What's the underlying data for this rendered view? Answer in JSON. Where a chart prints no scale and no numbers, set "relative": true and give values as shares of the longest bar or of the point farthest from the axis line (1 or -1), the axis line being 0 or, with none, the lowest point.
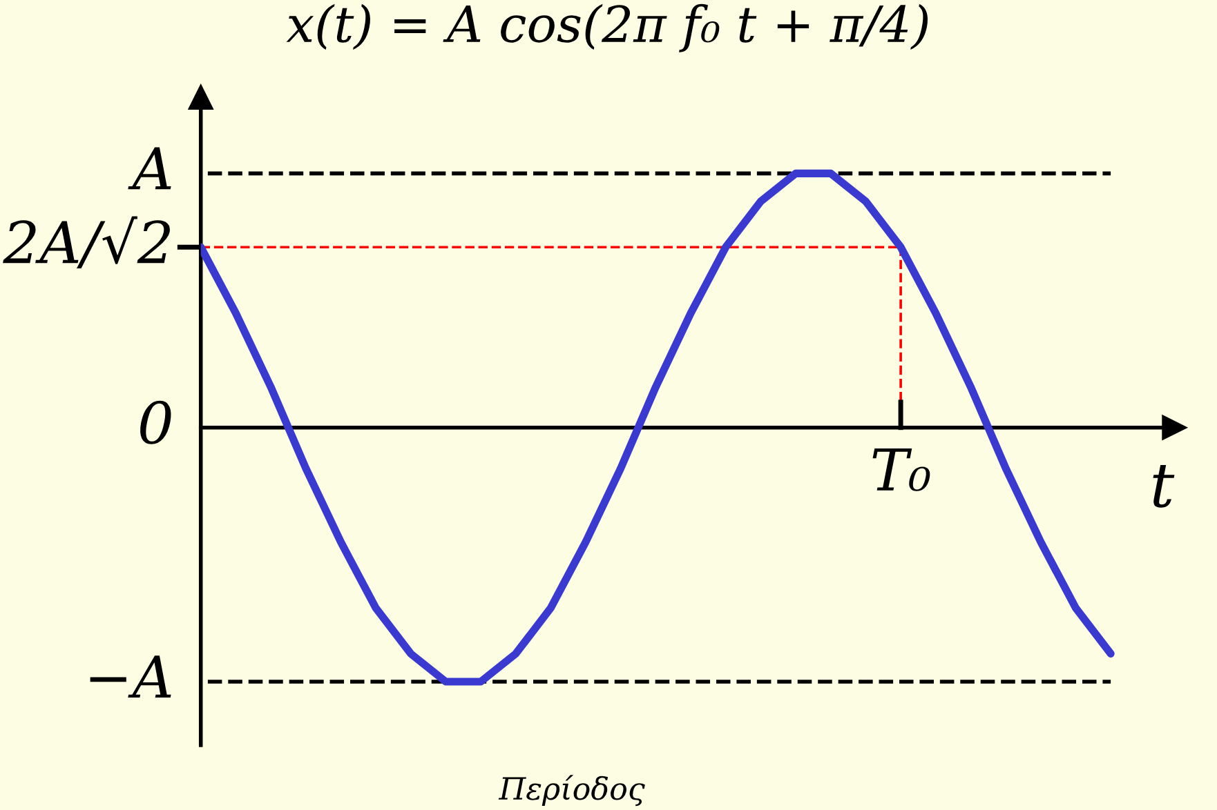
{
  "chart_data": {
    "type": "line",
    "title": "x(t) = A cos(2π f₀ t + π/4)",
    "xlabel": "t",
    "relative": true,
    "annotations": [
      "A",
      "2A/√2",
      "0",
      "−A",
      "T₀",
      "Περίοδος"
    ],
    "categories": [
      null,
      null,
      null,
      null,
      null,
      null,
      null,
      null,
      null,
      null,
      null,
      null,
      null,
      null,
      null,
      null,
      null,
      null,
      null,
      null,
      null,
      null,
      null,
      null,
      null,
      null,
      null
    ],
    "series": [
      {
        "color": "#3a3ad0",
        "values": [
          0.71,
          0.45,
          0.16,
          -0.16,
          -0.45,
          -0.71,
          -0.89,
          -1,
          -1,
          -0.89,
          -0.71,
          -0.45,
          -0.16,
          0.16,
          0.45,
          0.71,
          0.89,
          1,
          1,
          0.89,
          0.71,
          0.45,
          0.16,
          -0.16,
          -0.45,
          -0.71,
          -0.89
        ]
      }
    ],
    "tick_labels": false,
    "marker": "none",
    "line_style": "solid"
  }
}
